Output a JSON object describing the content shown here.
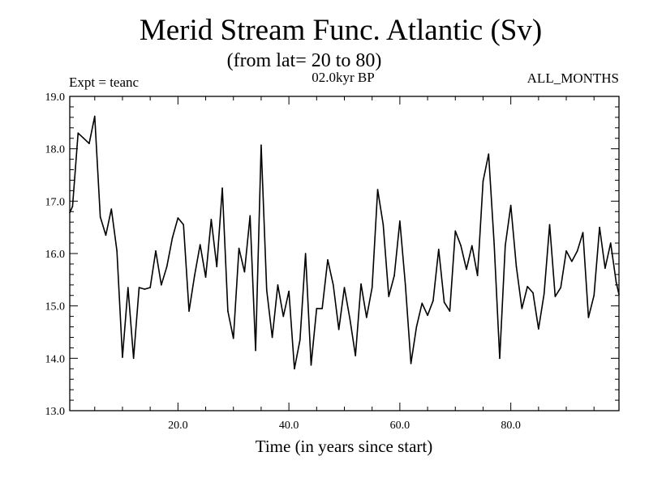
{
  "chart_data": {
    "type": "line",
    "title": "Merid Stream Func. Atlantic (Sv)",
    "subtitle": "(from lat= 20 to 80)",
    "annotations": {
      "left": "Expt = teanc",
      "center": "02.0kyr BP",
      "right": "ALL_MONTHS"
    },
    "xlabel": "Time (in years since start)",
    "ylabel": "",
    "xlim": [
      0.5,
      99.5
    ],
    "ylim": [
      13.0,
      19.0
    ],
    "xticks": [
      20,
      40,
      60,
      80
    ],
    "xtick_labels": [
      "20.0",
      "40.0",
      "60.0",
      "80.0"
    ],
    "yticks": [
      13,
      14,
      15,
      16,
      17,
      18,
      19
    ],
    "ytick_labels": [
      "13.0",
      "14.0",
      "15.0",
      "16.0",
      "17.0",
      "18.0",
      "19.0"
    ],
    "series": [
      {
        "name": "Merid Stream Func. Atlantic",
        "color": "#000000",
        "x": [
          0.5,
          1,
          2,
          3,
          4,
          5,
          6,
          7,
          8,
          9,
          10,
          11,
          12,
          13,
          14,
          15,
          16,
          17,
          18,
          19,
          20,
          21,
          22,
          23,
          24,
          25,
          26,
          27,
          28,
          29,
          30,
          31,
          32,
          33,
          34,
          35,
          36,
          37,
          38,
          39,
          40,
          41,
          42,
          43,
          44,
          45,
          46,
          47,
          48,
          49,
          50,
          51,
          52,
          53,
          54,
          55,
          56,
          57,
          58,
          59,
          60,
          61,
          62,
          63,
          64,
          65,
          66,
          67,
          68,
          69,
          70,
          71,
          72,
          73,
          74,
          75,
          76,
          77,
          78,
          79,
          80,
          81,
          82,
          83,
          84,
          85,
          86,
          87,
          88,
          89,
          90,
          91,
          92,
          93,
          94,
          95,
          96,
          97,
          98,
          99,
          99.5
        ],
        "values": [
          16.78,
          16.9,
          18.3,
          18.2,
          18.1,
          18.62,
          16.7,
          16.35,
          16.85,
          16.05,
          14.02,
          15.35,
          14.0,
          15.35,
          15.32,
          15.35,
          16.05,
          15.4,
          15.75,
          16.3,
          16.68,
          16.55,
          14.9,
          15.58,
          16.17,
          15.55,
          16.65,
          15.75,
          17.25,
          14.9,
          14.38,
          16.1,
          15.65,
          16.72,
          14.15,
          18.07,
          15.3,
          14.4,
          15.4,
          14.8,
          15.28,
          13.8,
          14.35,
          16.0,
          13.87,
          14.95,
          14.95,
          15.88,
          15.4,
          14.55,
          15.35,
          14.75,
          14.05,
          15.42,
          14.78,
          15.35,
          17.22,
          16.55,
          15.18,
          15.58,
          16.62,
          15.4,
          13.9,
          14.6,
          15.05,
          14.82,
          15.1,
          16.08,
          15.07,
          14.9,
          16.43,
          16.15,
          15.7,
          16.15,
          15.58,
          17.38,
          17.9,
          16.18,
          14.0,
          16.15,
          16.92,
          15.75,
          14.95,
          15.37,
          15.25,
          14.56,
          15.23,
          16.55,
          15.18,
          15.35,
          16.05,
          15.85,
          16.05,
          16.4,
          14.78,
          15.2,
          16.5,
          15.72,
          16.2,
          15.45,
          15.22
        ]
      }
    ]
  }
}
